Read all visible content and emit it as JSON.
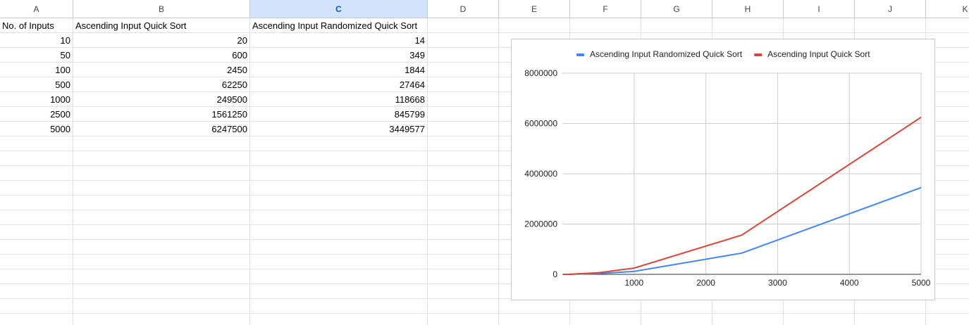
{
  "sheet": {
    "columns": [
      "A",
      "B",
      "C",
      "D",
      "E",
      "F",
      "G",
      "H",
      "I",
      "J",
      "K"
    ],
    "selected_column": "C",
    "headers": [
      "No. of Inputs",
      "Ascending Input Quick Sort",
      "Ascending Input Randomized Quick Sort"
    ],
    "rows": [
      [
        "10",
        "20",
        "14"
      ],
      [
        "50",
        "600",
        "349"
      ],
      [
        "100",
        "2450",
        "1844"
      ],
      [
        "500",
        "62250",
        "27464"
      ],
      [
        "1000",
        "249500",
        "118668"
      ],
      [
        "2500",
        "1561250",
        "845799"
      ],
      [
        "5000",
        "6247500",
        "3449577"
      ]
    ]
  },
  "chart_data": {
    "type": "line",
    "title": "",
    "xlabel": "",
    "ylabel": "",
    "x": [
      10,
      50,
      100,
      500,
      1000,
      2500,
      5000
    ],
    "series": [
      {
        "name": "Ascending Input Randomized Quick Sort",
        "color": "#4285f4",
        "values": [
          14,
          349,
          1844,
          27464,
          118668,
          845799,
          3449577
        ]
      },
      {
        "name": "Ascending Input Quick Sort",
        "color": "#db4437",
        "values": [
          20,
          600,
          2450,
          62250,
          249500,
          1561250,
          6247500
        ]
      }
    ],
    "xlim": [
      0,
      5000
    ],
    "ylim": [
      0,
      8000000
    ],
    "xticks": [
      1000,
      2000,
      3000,
      4000,
      5000
    ],
    "xtick_labels": [
      "1000",
      "2000",
      "3000",
      "4000",
      "5000"
    ],
    "yticks": [
      0,
      2000000,
      4000000,
      6000000,
      8000000
    ],
    "ytick_labels": [
      "0",
      "2000000",
      "4000000",
      "6000000",
      "8000000"
    ],
    "grid": true,
    "legend_position": "top"
  }
}
